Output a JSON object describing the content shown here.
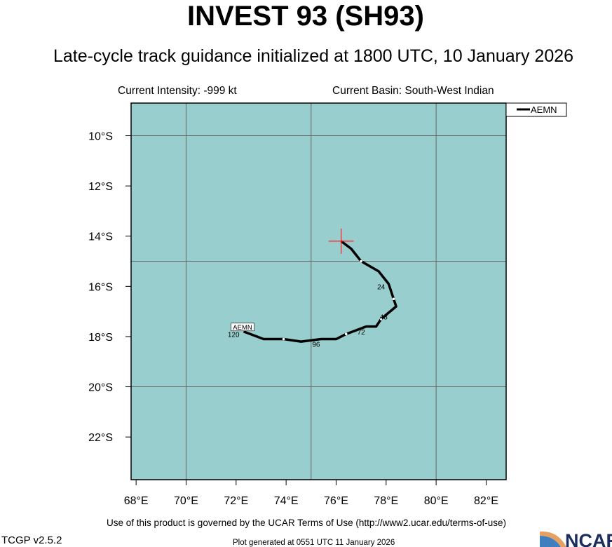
{
  "title": "INVEST 93 (SH93)",
  "subtitle": "Late-cycle track guidance initialized at 1800 UTC, 10 January 2026",
  "current_intensity": "Current Intensity: -999 kt",
  "current_basin": "Current Basin: South-West Indian",
  "footer_terms": "Use of this product is governed by the UCAR Terms of Use (http://www2.ucar.edu/terms-of-use)",
  "footer_version": "TCGP v2.5.2",
  "footer_generated": "Plot generated at 0551 UTC   11 January 2026",
  "logo_text": "NCAR",
  "chart_data": {
    "type": "line",
    "map": true,
    "lon_range": [
      67.8,
      82.8
    ],
    "lat_range_south": [
      8.7,
      23.7
    ],
    "x_ticks": [
      "68°E",
      "70°E",
      "72°E",
      "74°E",
      "76°E",
      "78°E",
      "80°E",
      "82°E"
    ],
    "x_tick_values": [
      68,
      70,
      72,
      74,
      76,
      78,
      80,
      82
    ],
    "y_ticks": [
      "10°S",
      "12°S",
      "14°S",
      "16°S",
      "18°S",
      "20°S",
      "22°S"
    ],
    "y_tick_values": [
      10,
      12,
      14,
      16,
      18,
      20,
      22
    ],
    "grid_lon": [
      70,
      75,
      80
    ],
    "grid_lat": [
      10,
      15,
      20
    ],
    "ocean_color": "#99cece",
    "legend_position": "top-right",
    "current_position": {
      "lon": 76.2,
      "lat_south": 14.2,
      "marker_color": "#ff2020"
    },
    "series": [
      {
        "name": "AEMN",
        "color": "#000000",
        "points": [
          [
            76.2,
            14.2
          ],
          [
            76.6,
            14.5
          ],
          [
            77.0,
            15.0
          ],
          [
            77.7,
            15.4
          ],
          [
            78.1,
            15.9
          ],
          [
            78.3,
            16.5
          ],
          [
            78.4,
            16.8
          ],
          [
            77.8,
            17.3
          ],
          [
            77.6,
            17.6
          ],
          [
            77.2,
            17.6
          ],
          [
            76.4,
            17.9
          ],
          [
            76.0,
            18.1
          ],
          [
            75.4,
            18.1
          ],
          [
            74.6,
            18.2
          ],
          [
            73.9,
            18.1
          ],
          [
            73.1,
            18.1
          ],
          [
            72.3,
            17.8
          ]
        ],
        "marker_points": [
          [
            77.0,
            15.0
          ],
          [
            78.3,
            16.5
          ],
          [
            77.8,
            17.3
          ],
          [
            76.4,
            17.9
          ],
          [
            73.9,
            18.1
          ]
        ],
        "tau_labels": [
          {
            "text": "24",
            "lon": 77.8,
            "lat_south": 16.0
          },
          {
            "text": "48",
            "lon": 77.9,
            "lat_south": 17.2
          },
          {
            "text": "72",
            "lon": 77.0,
            "lat_south": 17.8
          },
          {
            "text": "96",
            "lon": 75.2,
            "lat_south": 18.3
          },
          {
            "text": "120",
            "lon": 71.9,
            "lat_south": 17.9
          }
        ],
        "end_label": "AEMN"
      }
    ]
  }
}
